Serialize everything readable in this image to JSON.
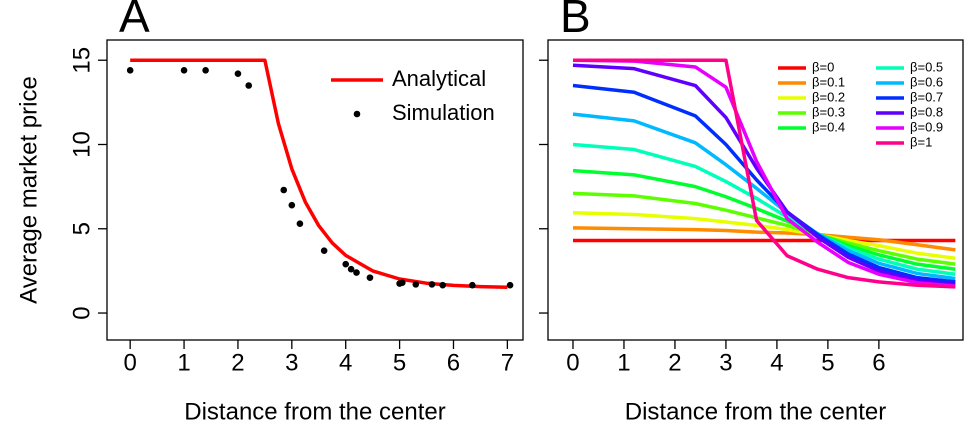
{
  "chart_data": [
    {
      "type": "line",
      "title": "A",
      "x_label": "Distance from the center",
      "y_label": "Average market price",
      "xlim": [
        -0.43,
        7.29
      ],
      "ylim": [
        -1.6,
        16.2
      ],
      "xticks": [
        0,
        1,
        2,
        3,
        4,
        5,
        6,
        7
      ],
      "yticks": [
        0,
        5,
        10,
        15
      ],
      "show_ytick_labels": true,
      "legend_position": "top-right",
      "legend_columns": 1,
      "series": [
        {
          "name": "Analytical",
          "mark": "line",
          "color": "#ff0000",
          "x": [
            0,
            2.5,
            2.75,
            3,
            3.25,
            3.5,
            3.75,
            4,
            4.5,
            5,
            5.5,
            6,
            6.5,
            7
          ],
          "values": [
            15,
            15,
            11.25,
            8.55,
            6.59,
            5.18,
            4.16,
            3.42,
            2.5,
            2.02,
            1.77,
            1.64,
            1.57,
            1.53
          ]
        },
        {
          "name": "Simulation",
          "mark": "point",
          "color": "#000000",
          "x": [
            0,
            1,
            1.4,
            2,
            2.2,
            2.85,
            3,
            3.15,
            3.6,
            4,
            4.1,
            4.2,
            4.45,
            5,
            5.05,
            5.3,
            5.6,
            5.8,
            6.35,
            7.05
          ],
          "values": [
            14.4,
            14.4,
            14.4,
            14.2,
            13.5,
            7.3,
            6.4,
            5.3,
            3.7,
            2.9,
            2.6,
            2.4,
            2.1,
            1.75,
            1.8,
            1.7,
            1.7,
            1.65,
            1.65,
            1.65
          ]
        }
      ]
    },
    {
      "type": "line",
      "title": "B",
      "x_label": "Distance from the center",
      "xlim": [
        -0.49,
        7.65
      ],
      "ylim": [
        -1.6,
        16.2
      ],
      "xticks": [
        0,
        1,
        2,
        3,
        4,
        5,
        6
      ],
      "yticks": [
        0,
        5,
        10,
        15
      ],
      "show_ytick_labels": false,
      "legend_position": "top-right",
      "legend_columns": 2,
      "x": [
        0,
        1.2,
        2.4,
        3,
        3.6,
        4.2,
        4.8,
        5.4,
        6,
        6.75,
        7.5
      ],
      "series": [
        {
          "name": "β=0",
          "mark": "line",
          "color": "#ff0000",
          "values": [
            4.3,
            4.3,
            4.3,
            4.3,
            4.3,
            4.3,
            4.3,
            4.3,
            4.3,
            4.3,
            4.3
          ]
        },
        {
          "name": "β=0.1",
          "mark": "line",
          "color": "#ff8b00",
          "values": [
            5.05,
            5.0,
            4.95,
            4.9,
            4.8,
            4.75,
            4.65,
            4.5,
            4.35,
            4.05,
            3.75
          ]
        },
        {
          "name": "β=0.2",
          "mark": "line",
          "color": "#e8ff00",
          "values": [
            5.95,
            5.85,
            5.6,
            5.4,
            5.2,
            4.95,
            4.65,
            4.3,
            4.0,
            3.55,
            3.25
          ]
        },
        {
          "name": "β=0.3",
          "mark": "line",
          "color": "#5dff00",
          "values": [
            7.1,
            6.95,
            6.5,
            6.1,
            5.65,
            5.2,
            4.65,
            4.15,
            3.7,
            3.2,
            2.9
          ]
        },
        {
          "name": "β=0.4",
          "mark": "line",
          "color": "#00ff2e",
          "values": [
            8.45,
            8.2,
            7.5,
            6.9,
            6.2,
            5.45,
            4.7,
            4.0,
            3.45,
            2.9,
            2.6
          ]
        },
        {
          "name": "β=0.5",
          "mark": "line",
          "color": "#00ffb9",
          "values": [
            10.0,
            9.7,
            8.7,
            7.8,
            6.8,
            5.7,
            4.7,
            3.85,
            3.2,
            2.6,
            2.3
          ]
        },
        {
          "name": "β=0.6",
          "mark": "line",
          "color": "#00b9ff",
          "values": [
            11.8,
            11.4,
            10.1,
            8.8,
            7.4,
            5.95,
            4.7,
            3.7,
            2.95,
            2.35,
            2.05
          ]
        },
        {
          "name": "β=0.7",
          "mark": "line",
          "color": "#002eff",
          "values": [
            13.5,
            13.1,
            11.7,
            10.0,
            7.9,
            6.0,
            4.65,
            3.5,
            2.7,
            2.1,
            1.85
          ]
        },
        {
          "name": "β=0.8",
          "mark": "line",
          "color": "#5d00ff",
          "values": [
            14.7,
            14.5,
            13.5,
            11.6,
            8.6,
            6.0,
            4.5,
            3.3,
            2.5,
            1.95,
            1.7
          ]
        },
        {
          "name": "β=0.9",
          "mark": "line",
          "color": "#e800ff",
          "values": [
            15,
            14.95,
            14.6,
            13.4,
            9.0,
            5.6,
            4.2,
            3.0,
            2.3,
            1.8,
            1.6
          ]
        },
        {
          "name": "β=1",
          "mark": "line",
          "color": "#ff008b",
          "values": [
            15,
            15,
            15,
            15,
            5.5,
            3.4,
            2.6,
            2.1,
            1.85,
            1.65,
            1.55
          ]
        }
      ]
    }
  ]
}
